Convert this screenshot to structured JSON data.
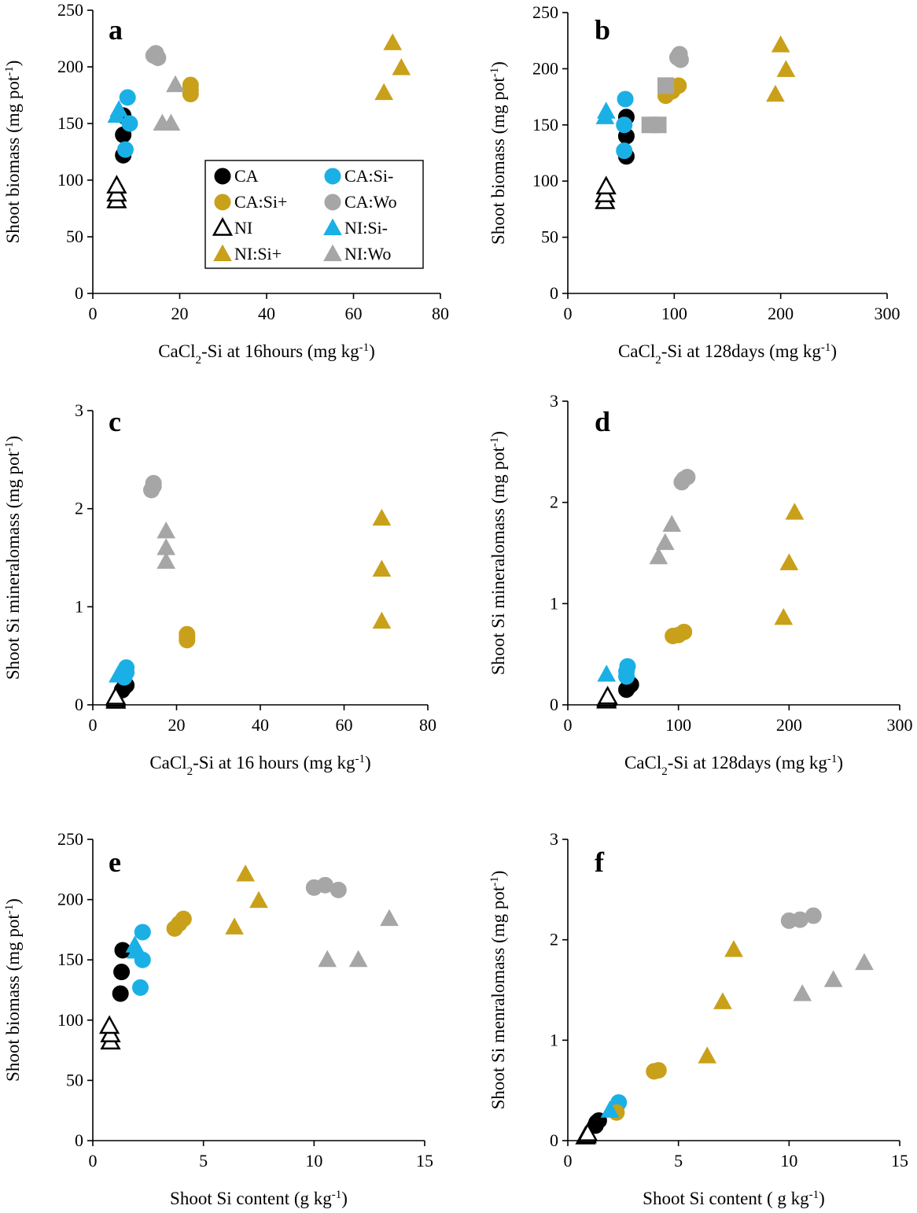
{
  "legend": [
    {
      "key": "CA",
      "label": "CA"
    },
    {
      "key": "CASi-",
      "label": "CA:Si-"
    },
    {
      "key": "CASi+",
      "label": "CA:Si+"
    },
    {
      "key": "CAWo",
      "label": "CA:Wo"
    },
    {
      "key": "NI",
      "label": "NI"
    },
    {
      "key": "NISi-",
      "label": "NI:Si-"
    },
    {
      "key": "NISi+",
      "label": "NI:Si+"
    },
    {
      "key": "NIWo",
      "label": "NI:Wo"
    }
  ],
  "styles": {
    "CA": {
      "shape": "circle",
      "fill": "#000000",
      "stroke": "#000000"
    },
    "CASi-": {
      "shape": "circle",
      "fill": "#1ab0e6",
      "stroke": "#1ab0e6"
    },
    "CASi+": {
      "shape": "circle",
      "fill": "#c9a01a",
      "stroke": "#c9a01a"
    },
    "CAWo": {
      "shape": "circle",
      "fill": "#a6a6a6",
      "stroke": "#a6a6a6"
    },
    "NI": {
      "shape": "triangle-open",
      "fill": "#ffffff",
      "stroke": "#000000"
    },
    "NISi-": {
      "shape": "triangle",
      "fill": "#1ab0e6",
      "stroke": "#1ab0e6"
    },
    "NISi+": {
      "shape": "triangle",
      "fill": "#c9a01a",
      "stroke": "#c9a01a"
    },
    "NIWo": {
      "shape": "triangle",
      "fill": "#a6a6a6",
      "stroke": "#a6a6a6"
    },
    "NIWoSq": {
      "shape": "square",
      "fill": "#a6a6a6",
      "stroke": "#a6a6a6"
    }
  },
  "chart_data": [
    {
      "panel": "a",
      "type": "scatter",
      "xlabel": "CaCl2-Si at 16hours (mg kg-1)",
      "xlabel_parts": [
        "CaCl",
        "2",
        "-Si at 16hours (mg kg",
        "-1",
        ")"
      ],
      "ylabel": "Shoot biomass (mg pot-1)",
      "ylabel_parts": [
        "Shoot biomass (mg pot",
        "-1",
        ")"
      ],
      "xlim": [
        0,
        80
      ],
      "ylim": [
        0,
        250
      ],
      "xticks": [
        0,
        20,
        40,
        60,
        80
      ],
      "yticks": [
        0,
        50,
        100,
        150,
        200,
        250
      ],
      "has_legend": true,
      "series": [
        {
          "key": "CA",
          "points": [
            [
              7,
              122
            ],
            [
              7,
              140
            ],
            [
              7,
              157
            ]
          ]
        },
        {
          "key": "CASi-",
          "points": [
            [
              7.5,
              127
            ],
            [
              8,
              173
            ],
            [
              8.5,
              150
            ]
          ]
        },
        {
          "key": "CASi+",
          "points": [
            [
              22.5,
              176
            ],
            [
              22.5,
              180
            ],
            [
              22.5,
              184
            ]
          ]
        },
        {
          "key": "CAWo",
          "points": [
            [
              14,
              210
            ],
            [
              14.5,
              212
            ],
            [
              15,
              208
            ]
          ]
        },
        {
          "key": "NI",
          "points": [
            [
              5.5,
              82
            ],
            [
              5.5,
              88
            ],
            [
              5.5,
              95
            ]
          ]
        },
        {
          "key": "NISi-",
          "points": [
            [
              5.5,
              157
            ],
            [
              6,
              162
            ]
          ]
        },
        {
          "key": "NISi+",
          "points": [
            [
              67,
              177
            ],
            [
              69,
              221
            ],
            [
              71,
              199
            ]
          ]
        },
        {
          "key": "NIWo",
          "points": [
            [
              16,
              150
            ],
            [
              18,
              150
            ],
            [
              19,
              184
            ]
          ]
        }
      ]
    },
    {
      "panel": "b",
      "type": "scatter",
      "xlabel": "CaCl2-Si at 128days (mg kg-1)",
      "xlabel_parts": [
        "CaCl",
        "2",
        "-Si at 128days (mg kg",
        "-1",
        ")"
      ],
      "ylabel": "Shoot biomass (mg pot-1)",
      "ylabel_parts": [
        "Shoot biomass (mg pot",
        "-1",
        ")"
      ],
      "xlim": [
        0,
        300
      ],
      "ylim": [
        0,
        250
      ],
      "xticks": [
        0,
        100,
        200,
        300
      ],
      "yticks": [
        0,
        50,
        100,
        150,
        200,
        250
      ],
      "has_legend": false,
      "series": [
        {
          "key": "CA",
          "points": [
            [
              55,
              122
            ],
            [
              55,
              140
            ],
            [
              55,
              157
            ]
          ]
        },
        {
          "key": "CASi-",
          "points": [
            [
              53,
              127
            ],
            [
              53,
              150
            ],
            [
              54,
              173
            ]
          ]
        },
        {
          "key": "CASi+",
          "points": [
            [
              92,
              176
            ],
            [
              98,
              180
            ],
            [
              104,
              185
            ]
          ]
        },
        {
          "key": "CAWo",
          "points": [
            [
              103,
              210
            ],
            [
              105,
              213
            ],
            [
              106,
              208
            ]
          ]
        },
        {
          "key": "NI",
          "points": [
            [
              35,
              82
            ],
            [
              35,
              88
            ],
            [
              36,
              95
            ]
          ]
        },
        {
          "key": "NISi-",
          "points": [
            [
              35,
              157
            ],
            [
              36,
              162
            ]
          ]
        },
        {
          "key": "NISi+",
          "points": [
            [
              195,
              177
            ],
            [
              200,
              221
            ],
            [
              205,
              199
            ]
          ]
        },
        {
          "key": "NIWoSq",
          "points": [
            [
              77,
              150
            ],
            [
              85,
              150
            ],
            [
              92,
              185
            ]
          ]
        }
      ]
    },
    {
      "panel": "c",
      "type": "scatter",
      "xlabel": "CaCl2-Si at 16 hours (mg kg-1)",
      "xlabel_parts": [
        "CaCl",
        "2",
        "-Si at 16 hours (mg kg",
        "-1",
        ")"
      ],
      "ylabel": "Shoot Si mineralomass (mg pot-1)",
      "ylabel_parts": [
        "Shoot Si mineralomass (mg pot",
        "-1",
        ")"
      ],
      "xlim": [
        0,
        80
      ],
      "ylim": [
        0,
        3
      ],
      "xticks": [
        0,
        20,
        40,
        60,
        80
      ],
      "yticks": [
        0,
        1,
        2,
        3
      ],
      "has_legend": false,
      "series": [
        {
          "key": "CA",
          "points": [
            [
              7,
              0.15
            ],
            [
              7.5,
              0.18
            ],
            [
              8,
              0.2
            ]
          ]
        },
        {
          "key": "CASi-",
          "points": [
            [
              7.5,
              0.28
            ],
            [
              8,
              0.33
            ],
            [
              8,
              0.38
            ]
          ]
        },
        {
          "key": "CASi+",
          "points": [
            [
              22.5,
              0.66
            ],
            [
              22.5,
              0.69
            ],
            [
              22.5,
              0.72
            ]
          ]
        },
        {
          "key": "CAWo",
          "points": [
            [
              14,
              2.19
            ],
            [
              14.5,
              2.23
            ],
            [
              14.5,
              2.26
            ]
          ]
        },
        {
          "key": "NI",
          "points": [
            [
              5.5,
              0.04
            ],
            [
              5.5,
              0.06
            ],
            [
              5.5,
              0.08
            ]
          ]
        },
        {
          "key": "NISi-",
          "points": [
            [
              6,
              0.3
            ],
            [
              6.5,
              0.32
            ]
          ]
        },
        {
          "key": "NISi+",
          "points": [
            [
              69,
              0.85
            ],
            [
              69,
              1.38
            ],
            [
              69,
              1.9
            ]
          ]
        },
        {
          "key": "NIWo",
          "points": [
            [
              17.5,
              1.46
            ],
            [
              17.5,
              1.6
            ],
            [
              17.5,
              1.77
            ]
          ]
        }
      ]
    },
    {
      "panel": "d",
      "type": "scatter",
      "xlabel": "CaCl2-Si at 128days  (mg kg-1)",
      "xlabel_parts": [
        "CaCl",
        "2",
        "-Si at 128days  (mg kg",
        "-1",
        ")"
      ],
      "ylabel": "Shoot Si mineralomass (mg pot-1)",
      "ylabel_parts": [
        "Shoot Si mineralomass (mg pot",
        "-1",
        ")"
      ],
      "xlim": [
        0,
        300
      ],
      "ylim": [
        0,
        3
      ],
      "xticks": [
        0,
        100,
        200,
        300
      ],
      "yticks": [
        0,
        1,
        2,
        3
      ],
      "has_legend": false,
      "series": [
        {
          "key": "CA",
          "points": [
            [
              53,
              0.15
            ],
            [
              55,
              0.18
            ],
            [
              57,
              0.2
            ]
          ]
        },
        {
          "key": "CASi-",
          "points": [
            [
              53,
              0.28
            ],
            [
              53,
              0.33
            ],
            [
              54,
              0.38
            ]
          ]
        },
        {
          "key": "CASi+",
          "points": [
            [
              95,
              0.68
            ],
            [
              100,
              0.69
            ],
            [
              105,
              0.72
            ]
          ]
        },
        {
          "key": "CAWo",
          "points": [
            [
              103,
              2.2
            ],
            [
              105,
              2.23
            ],
            [
              108,
              2.25
            ]
          ]
        },
        {
          "key": "NI",
          "points": [
            [
              35,
              0.04
            ],
            [
              35,
              0.06
            ],
            [
              36,
              0.08
            ]
          ]
        },
        {
          "key": "NISi-",
          "points": [
            [
              35,
              0.3
            ]
          ]
        },
        {
          "key": "NISi+",
          "points": [
            [
              195,
              0.86
            ],
            [
              200,
              1.4
            ],
            [
              205,
              1.9
            ]
          ]
        },
        {
          "key": "NIWo",
          "points": [
            [
              82,
              1.46
            ],
            [
              88,
              1.6
            ],
            [
              94,
              1.78
            ]
          ]
        }
      ]
    },
    {
      "panel": "e",
      "type": "scatter",
      "xlabel": "Shoot Si content (g kg-1)",
      "xlabel_parts": [
        "Shoot Si content (g kg",
        "-1",
        ")"
      ],
      "ylabel": "Shoot biomass (mg pot-1)",
      "ylabel_parts": [
        "Shoot biomass (mg pot",
        "-1",
        ")"
      ],
      "xlim": [
        0,
        15
      ],
      "ylim": [
        0,
        250
      ],
      "xticks": [
        0,
        5,
        10,
        15
      ],
      "yticks": [
        0,
        50,
        100,
        150,
        200,
        250
      ],
      "has_legend": false,
      "series": [
        {
          "key": "CA",
          "points": [
            [
              1.25,
              122
            ],
            [
              1.3,
              140
            ],
            [
              1.35,
              158
            ]
          ]
        },
        {
          "key": "CASi-",
          "points": [
            [
              2.15,
              127
            ],
            [
              2.25,
              150
            ],
            [
              2.25,
              173
            ]
          ]
        },
        {
          "key": "CASi+",
          "points": [
            [
              3.7,
              176
            ],
            [
              3.9,
              180
            ],
            [
              4.1,
              184
            ]
          ]
        },
        {
          "key": "CAWo",
          "points": [
            [
              10,
              210
            ],
            [
              10.5,
              212
            ],
            [
              11.1,
              208
            ]
          ]
        },
        {
          "key": "NI",
          "points": [
            [
              0.8,
              82
            ],
            [
              0.8,
              88
            ],
            [
              0.75,
              95
            ]
          ]
        },
        {
          "key": "NISi-",
          "points": [
            [
              1.9,
              162
            ],
            [
              1.95,
              157
            ]
          ]
        },
        {
          "key": "NISi+",
          "points": [
            [
              6.4,
              177
            ],
            [
              6.9,
              221
            ],
            [
              7.5,
              199
            ]
          ]
        },
        {
          "key": "NIWo",
          "points": [
            [
              10.6,
              150
            ],
            [
              12,
              150
            ],
            [
              13.4,
              184
            ]
          ]
        }
      ]
    },
    {
      "panel": "f",
      "type": "scatter",
      "xlabel": "Shoot Si content ( g kg-1)",
      "xlabel_parts": [
        "Shoot Si content ( g kg",
        "-1",
        ")"
      ],
      "ylabel": "Shoot Si menralomass (mg pot-1)",
      "ylabel_parts": [
        "Shoot Si menralomass (mg pot",
        "-1",
        ")"
      ],
      "xlim": [
        0,
        15
      ],
      "ylim": [
        0,
        3
      ],
      "xticks": [
        0,
        5,
        10,
        15
      ],
      "yticks": [
        0,
        1,
        2,
        3
      ],
      "has_legend": false,
      "series": [
        {
          "key": "CA",
          "points": [
            [
              1.25,
              0.15
            ],
            [
              1.3,
              0.18
            ],
            [
              1.4,
              0.2
            ]
          ]
        },
        {
          "key": "CASi-",
          "points": [
            [
              2.1,
              0.3
            ],
            [
              2.2,
              0.34
            ],
            [
              2.3,
              0.38
            ]
          ]
        },
        {
          "key": "CASi+",
          "points": [
            [
              2.2,
              0.28
            ],
            [
              3.9,
              0.69
            ],
            [
              4.1,
              0.7
            ]
          ]
        },
        {
          "key": "CAWo",
          "points": [
            [
              10,
              2.19
            ],
            [
              10.5,
              2.2
            ],
            [
              11.1,
              2.24
            ]
          ]
        },
        {
          "key": "NI",
          "points": [
            [
              0.8,
              0.04
            ],
            [
              0.85,
              0.05
            ],
            [
              0.9,
              0.07
            ]
          ]
        },
        {
          "key": "NISi-",
          "points": [
            [
              1.9,
              0.3
            ]
          ]
        },
        {
          "key": "NISi+",
          "points": [
            [
              6.3,
              0.84
            ],
            [
              7,
              1.38
            ],
            [
              7.5,
              1.9
            ]
          ]
        },
        {
          "key": "NIWo",
          "points": [
            [
              10.6,
              1.46
            ],
            [
              12,
              1.6
            ],
            [
              13.4,
              1.77
            ]
          ]
        }
      ]
    }
  ]
}
